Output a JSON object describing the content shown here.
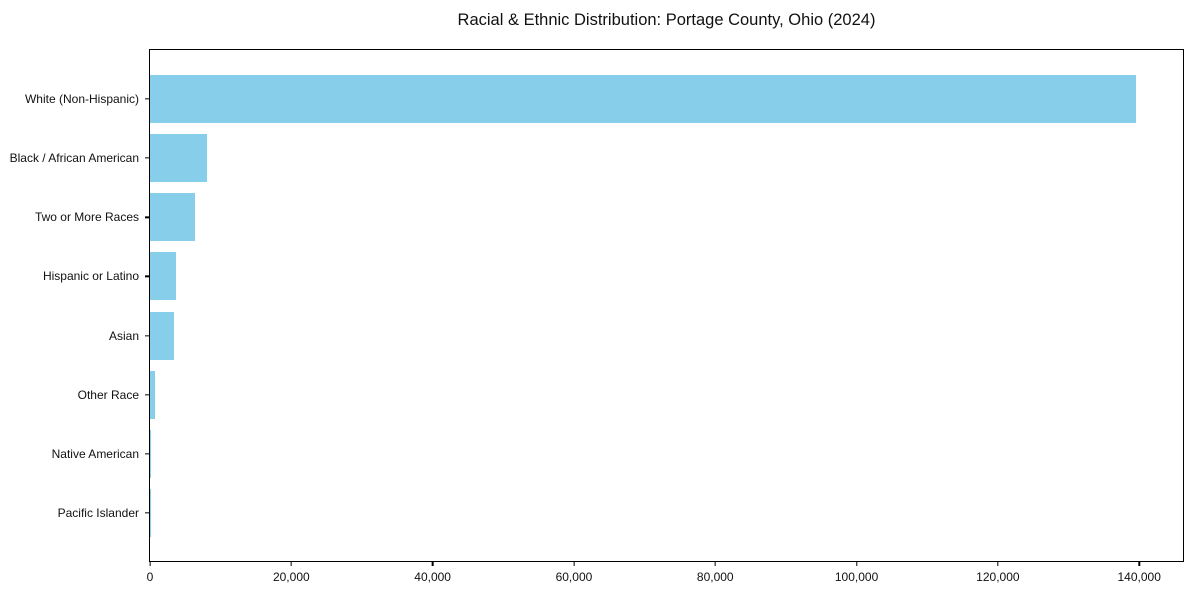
{
  "chart_data": {
    "type": "bar",
    "orientation": "horizontal",
    "title": "Racial & Ethnic Distribution: Portage County, Ohio (2024)",
    "categories": [
      "White (Non-Hispanic)",
      "Black / African American",
      "Two or More Races",
      "Hispanic or Latino",
      "Asian",
      "Other Race",
      "Native American",
      "Pacific Islander"
    ],
    "values": [
      139500,
      8100,
      6400,
      3700,
      3400,
      650,
      150,
      40
    ],
    "xlabel": "",
    "ylabel": "",
    "xlim": [
      0,
      146200
    ],
    "x_ticks": [
      0,
      20000,
      40000,
      60000,
      80000,
      100000,
      120000,
      140000
    ],
    "x_tick_labels": [
      "0",
      "20,000",
      "40,000",
      "60,000",
      "80,000",
      "100,000",
      "120,000",
      "140,000"
    ],
    "bar_color": "#87CEEB",
    "grid": false,
    "legend_position": "none"
  },
  "colors": {
    "background": "#ffffff",
    "text": "#111111",
    "axis": "#000000",
    "bar": "#87CEEB"
  }
}
